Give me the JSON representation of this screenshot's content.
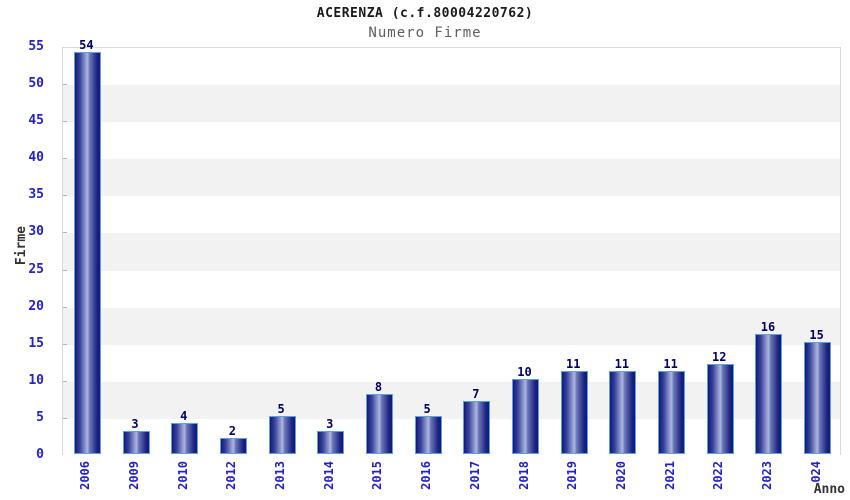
{
  "chart_data": {
    "type": "bar",
    "title": "ACERENZA (c.f.80004220762)",
    "subtitle": "Numero Firme",
    "xlabel": "Anno",
    "ylabel": "Firme",
    "categories": [
      "2006",
      "2009",
      "2010",
      "2012",
      "2013",
      "2014",
      "2015",
      "2016",
      "2017",
      "2018",
      "2019",
      "2020",
      "2021",
      "2022",
      "2023",
      "2024"
    ],
    "values": [
      54,
      3,
      4,
      2,
      5,
      3,
      8,
      5,
      7,
      10,
      11,
      11,
      11,
      12,
      16,
      15
    ],
    "ylim": [
      0,
      55
    ],
    "ytick_step": 5,
    "yticks": [
      0,
      5,
      10,
      15,
      20,
      25,
      30,
      35,
      40,
      45,
      50,
      55
    ],
    "grid": "alternating-bands",
    "legend": "none",
    "colors": {
      "tick_label": "#2222cc",
      "value_label": "#00006b",
      "bar_border": "#5ca2e0",
      "bar_dark": "#131878",
      "bar_light": "#aeb6e0",
      "band": "#f2f2f2",
      "plot_border": "#d9d9d9",
      "title": "#1a1a1a",
      "subtitle": "#5f5f5f",
      "axis_title": "#333333"
    }
  }
}
